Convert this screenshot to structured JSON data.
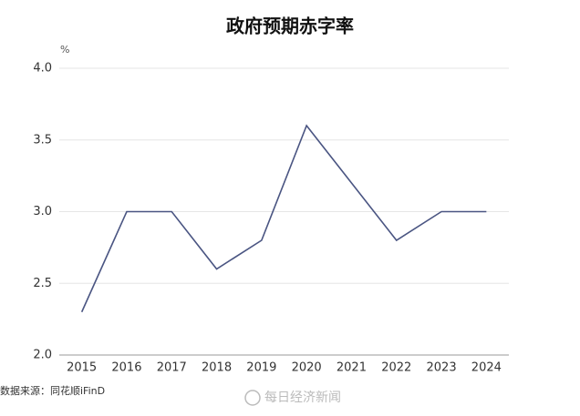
{
  "chart_data": {
    "type": "line",
    "title": "政府预期赤字率",
    "y_unit": "%",
    "categories": [
      "2015",
      "2016",
      "2017",
      "2018",
      "2019",
      "2020",
      "2021",
      "2022",
      "2023",
      "2024"
    ],
    "values": [
      2.3,
      3.0,
      3.0,
      2.6,
      2.8,
      3.6,
      3.2,
      2.8,
      3.0,
      3.0
    ],
    "color": "#4a5582",
    "ylim": [
      2.0,
      4.0
    ],
    "yticks": [
      {
        "value": 2.0,
        "label": "2.0"
      },
      {
        "value": 2.5,
        "label": "2.5"
      },
      {
        "value": 3.0,
        "label": "3.0"
      },
      {
        "value": 3.5,
        "label": "3.5"
      },
      {
        "value": 4.0,
        "label": "4.0"
      }
    ],
    "grid": true,
    "source": "数据来源：同花顺iFinD",
    "watermark": "每日经济新闻"
  }
}
